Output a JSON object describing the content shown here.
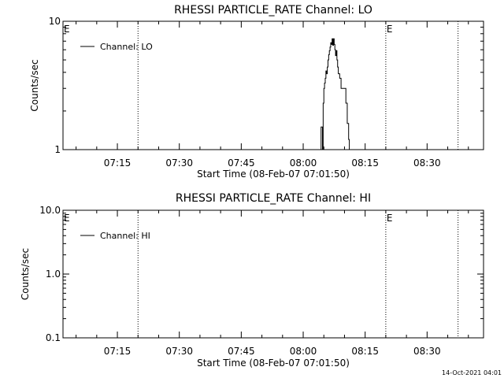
{
  "timestamp": "14-Oct-2021 04:01",
  "chart_data": [
    {
      "type": "line",
      "title": "RHESSI PARTICLE_RATE Channel: LO",
      "xlabel": "Start Time (08-Feb-07 07:01:50)",
      "ylabel": "Counts/sec",
      "yscale": "log",
      "ylim": [
        1,
        10
      ],
      "xlim": [
        "07:01:50",
        "08:43:40"
      ],
      "x_ticks": [
        "07:15",
        "07:30",
        "07:45",
        "08:00",
        "08:15",
        "08:30"
      ],
      "y_ticks": [
        "1",
        "10"
      ],
      "legend": {
        "label": "Channel: LO",
        "placement": "top-left"
      },
      "event_marker": "E",
      "event_lines": [
        "07:20:00",
        "08:20:00",
        "08:37:30"
      ],
      "event_labels_at": [
        "07:01:50",
        "08:20:00"
      ],
      "series": [
        {
          "points": [
            [
              "08:04:20",
              1.0
            ],
            [
              "08:04:20",
              1.5
            ],
            [
              "08:04:40",
              1.5
            ],
            [
              "08:04:40",
              1.0
            ],
            [
              "08:04:50",
              1.0
            ],
            [
              "08:04:50",
              2.3
            ],
            [
              "08:05:00",
              2.3
            ],
            [
              "08:05:00",
              3.0
            ],
            [
              "08:05:10",
              3.0
            ],
            [
              "08:05:10",
              3.3
            ],
            [
              "08:05:20",
              3.3
            ],
            [
              "08:05:20",
              3.6
            ],
            [
              "08:05:30",
              3.6
            ],
            [
              "08:05:30",
              4.1
            ],
            [
              "08:05:40",
              4.1
            ],
            [
              "08:05:40",
              3.9
            ],
            [
              "08:05:50",
              3.9
            ],
            [
              "08:05:50",
              4.4
            ],
            [
              "08:06:00",
              4.4
            ],
            [
              "08:06:00",
              5.0
            ],
            [
              "08:06:10",
              5.0
            ],
            [
              "08:06:10",
              5.5
            ],
            [
              "08:06:20",
              5.5
            ],
            [
              "08:06:20",
              5.9
            ],
            [
              "08:06:30",
              5.9
            ],
            [
              "08:06:30",
              6.3
            ],
            [
              "08:06:40",
              6.3
            ],
            [
              "08:06:40",
              6.8
            ],
            [
              "08:06:50",
              6.8
            ],
            [
              "08:06:50",
              6.6
            ],
            [
              "08:07:00",
              6.6
            ],
            [
              "08:07:00",
              7.3
            ],
            [
              "08:07:10",
              7.3
            ],
            [
              "08:07:10",
              6.5
            ],
            [
              "08:07:20",
              6.5
            ],
            [
              "08:07:20",
              7.3
            ],
            [
              "08:07:30",
              7.3
            ],
            [
              "08:07:30",
              6.6
            ],
            [
              "08:07:40",
              6.6
            ],
            [
              "08:07:40",
              6.0
            ],
            [
              "08:07:50",
              6.0
            ],
            [
              "08:07:50",
              5.4
            ],
            [
              "08:08:00",
              5.4
            ],
            [
              "08:08:00",
              5.9
            ],
            [
              "08:08:10",
              5.9
            ],
            [
              "08:08:10",
              5.0
            ],
            [
              "08:08:20",
              5.0
            ],
            [
              "08:08:20",
              4.4
            ],
            [
              "08:08:30",
              4.4
            ],
            [
              "08:08:30",
              3.9
            ],
            [
              "08:08:50",
              3.9
            ],
            [
              "08:08:50",
              3.6
            ],
            [
              "08:09:10",
              3.6
            ],
            [
              "08:09:10",
              3.0
            ],
            [
              "08:10:20",
              3.0
            ],
            [
              "08:10:20",
              2.3
            ],
            [
              "08:10:40",
              2.3
            ],
            [
              "08:10:40",
              1.6
            ],
            [
              "08:11:00",
              1.6
            ],
            [
              "08:11:00",
              1.2
            ],
            [
              "08:11:10",
              1.2
            ],
            [
              "08:11:10",
              1.0
            ]
          ]
        }
      ]
    },
    {
      "type": "line",
      "title": "RHESSI PARTICLE_RATE Channel: HI",
      "xlabel": "Start Time (08-Feb-07 07:01:50)",
      "ylabel": "Counts/sec",
      "yscale": "log",
      "ylim": [
        0.1,
        10
      ],
      "xlim": [
        "07:01:50",
        "08:43:40"
      ],
      "x_ticks": [
        "07:15",
        "07:30",
        "07:45",
        "08:00",
        "08:15",
        "08:30"
      ],
      "y_ticks": [
        "0.1",
        "1.0",
        "10.0"
      ],
      "legend": {
        "label": "Channel: HI",
        "placement": "top-left"
      },
      "event_marker": "E",
      "event_lines": [
        "07:20:00",
        "08:20:00",
        "08:37:30"
      ],
      "event_labels_at": [
        "07:01:50",
        "08:20:00"
      ],
      "series": [
        {
          "points": []
        }
      ]
    }
  ]
}
